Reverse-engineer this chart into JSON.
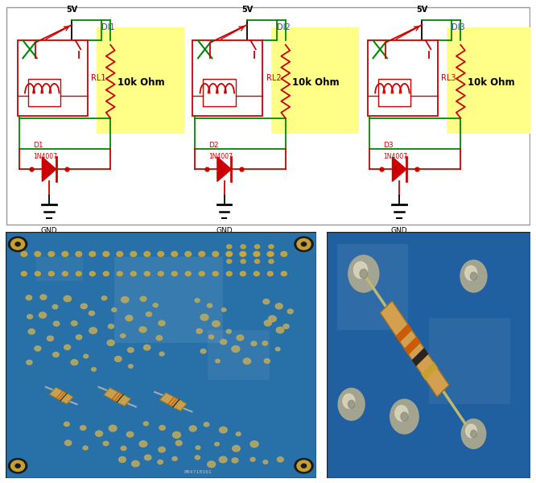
{
  "bg_color": "#ffffff",
  "circuits": [
    {
      "label_relay": "RL1",
      "label_di": "DI1",
      "label_d": "D1",
      "label_d_type": "1N4007"
    },
    {
      "label_relay": "RL2",
      "label_di": "DI2",
      "label_d": "D2",
      "label_d_type": "1N4007"
    },
    {
      "label_relay": "RL3",
      "label_di": "DI3",
      "label_d": "D3",
      "label_d_type": "1N4007"
    }
  ],
  "highlight_color": "#ffff88",
  "resistor_label": "10k Ohm",
  "vcc_label": "5V",
  "gnd_label": "GND",
  "wire_green": "#008800",
  "wire_red": "#cc0000",
  "label_blue": "#2244cc",
  "label_red": "#cc0000",
  "pcb_bg": "#2a72a8",
  "pcb_bg2": "#2060a0",
  "solder_color": "#c8b86a",
  "resistor_body": "#d4a050",
  "resistor_lead": "#c0c0c0"
}
